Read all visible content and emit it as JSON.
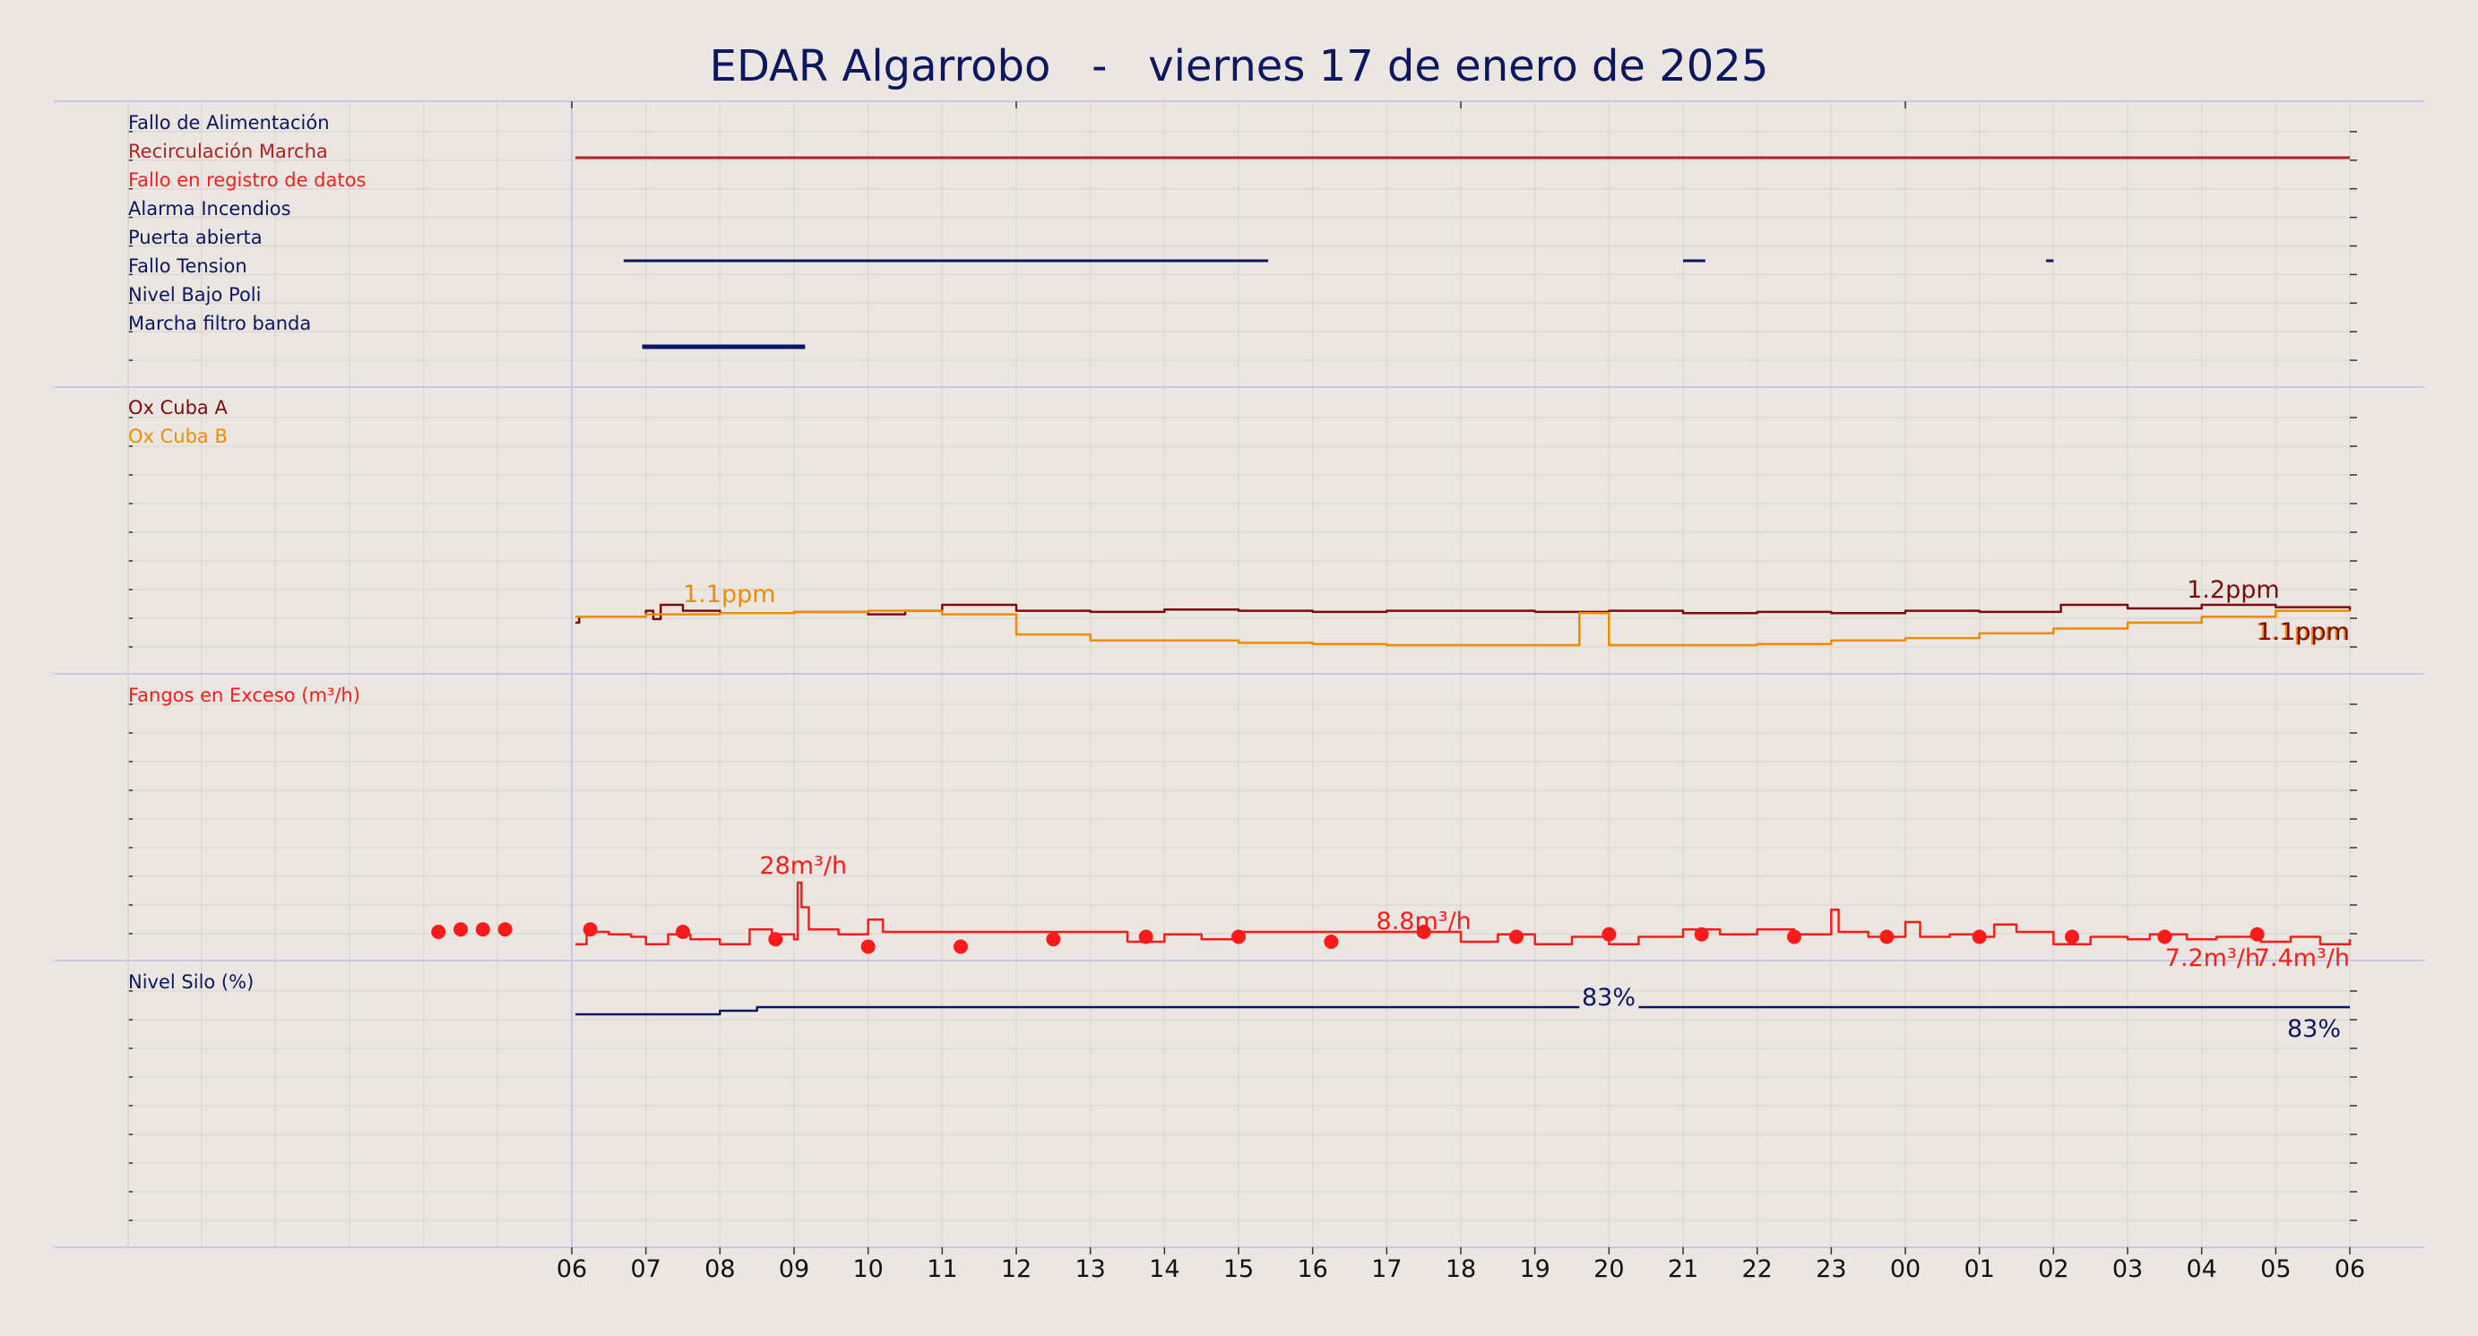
{
  "title": "EDAR Algarrobo   -   viernes 17 de enero de 2025",
  "chart_data": {
    "type": "line",
    "x_tick_labels": [
      "06",
      "07",
      "08",
      "09",
      "10",
      "11",
      "12",
      "13",
      "14",
      "15",
      "16",
      "17",
      "18",
      "19",
      "20",
      "21",
      "22",
      "23",
      "00",
      "01",
      "02",
      "03",
      "04",
      "05",
      "06"
    ],
    "panels": [
      {
        "name": "alarms",
        "series": [
          {
            "name": "Fallo de Alimentación",
            "color": "#0d1660",
            "segments": []
          },
          {
            "name": "Recirculación Marcha",
            "color": "#b22222",
            "segments": [
              [
                6.05,
                30.0
              ]
            ]
          },
          {
            "name": "Fallo en registro de datos",
            "color": "#ff1a1a",
            "segments": []
          },
          {
            "name": "Alarma Incendios",
            "color": "#0d1660",
            "segments": []
          },
          {
            "name": "Puerta abierta",
            "color": "#0d1660",
            "segments": [
              [
                6.7,
                15.4
              ],
              [
                21.0,
                21.3
              ],
              [
                25.9,
                26.0
              ]
            ]
          },
          {
            "name": "Fallo Tension",
            "color": "#0d1660",
            "segments": []
          },
          {
            "name": "Nivel Bajo Poli",
            "color": "#0d1660",
            "segments": []
          },
          {
            "name": "Marcha filtro banda",
            "color": "#0d1660",
            "segments": [
              [
                6.95,
                9.15
              ]
            ]
          }
        ]
      },
      {
        "name": "oxygen",
        "unit": "ppm",
        "ylim": [
          0,
          2.2
        ],
        "series": [
          {
            "name": "Ox Cuba A",
            "color": "#7a0c0c",
            "points": [
              [
                6.05,
                1.05
              ],
              [
                6.1,
                1.1
              ],
              [
                7.0,
                1.15
              ],
              [
                7.1,
                1.08
              ],
              [
                7.2,
                1.2
              ],
              [
                7.5,
                1.15
              ],
              [
                8.0,
                1.13
              ],
              [
                9.0,
                1.14
              ],
              [
                10.0,
                1.12
              ],
              [
                10.5,
                1.15
              ],
              [
                11.0,
                1.2
              ],
              [
                12.0,
                1.15
              ],
              [
                13.0,
                1.14
              ],
              [
                14.0,
                1.16
              ],
              [
                15.0,
                1.15
              ],
              [
                16.0,
                1.14
              ],
              [
                17.0,
                1.15
              ],
              [
                18.0,
                1.15
              ],
              [
                19.0,
                1.14
              ],
              [
                20.0,
                1.15
              ],
              [
                21.0,
                1.13
              ],
              [
                22.0,
                1.14
              ],
              [
                23.0,
                1.13
              ],
              [
                24.0,
                1.15
              ],
              [
                25.0,
                1.14
              ],
              [
                26.0,
                1.14
              ],
              [
                26.1,
                1.2
              ],
              [
                27.0,
                1.17
              ],
              [
                28.0,
                1.2
              ],
              [
                29.0,
                1.18
              ],
              [
                30.0,
                1.15
              ]
            ],
            "label_value": 1.2,
            "label_x": 27.8,
            "end_label_value": 1.1
          },
          {
            "name": "Ox Cuba B",
            "color": "#f08c00",
            "points": [
              [
                6.05,
                1.1
              ],
              [
                7.0,
                1.12
              ],
              [
                8.0,
                1.13
              ],
              [
                9.0,
                1.14
              ],
              [
                10.0,
                1.15
              ],
              [
                11.0,
                1.12
              ],
              [
                12.0,
                1.12
              ],
              [
                12.0,
                0.95
              ],
              [
                13.0,
                0.95
              ],
              [
                13.0,
                0.9
              ],
              [
                14.0,
                0.9
              ],
              [
                15.0,
                0.88
              ],
              [
                16.0,
                0.87
              ],
              [
                17.0,
                0.86
              ],
              [
                18.0,
                0.86
              ],
              [
                19.0,
                0.86
              ],
              [
                19.6,
                0.86
              ],
              [
                19.6,
                1.13
              ],
              [
                20.0,
                1.13
              ],
              [
                20.0,
                0.86
              ],
              [
                21.0,
                0.86
              ],
              [
                22.0,
                0.87
              ],
              [
                23.0,
                0.9
              ],
              [
                24.0,
                0.92
              ],
              [
                25.0,
                0.96
              ],
              [
                26.0,
                1.0
              ],
              [
                27.0,
                1.05
              ],
              [
                28.0,
                1.1
              ],
              [
                29.0,
                1.15
              ],
              [
                30.0,
                1.15
              ]
            ],
            "label_value": 1.1,
            "label_x": 7.5,
            "end_label_value": 1.1
          }
        ]
      },
      {
        "name": "sludge",
        "ylim": [
          0,
          100
        ],
        "series": [
          {
            "name": "Fangos en Exceso (m³/h)",
            "unit": "m³/h",
            "color": "#ff1a1a",
            "points": [
              [
                6.05,
                3
              ],
              [
                6.2,
                8
              ],
              [
                6.5,
                7
              ],
              [
                6.8,
                6
              ],
              [
                7.0,
                3
              ],
              [
                7.3,
                7
              ],
              [
                7.6,
                5
              ],
              [
                8.0,
                3
              ],
              [
                8.4,
                9
              ],
              [
                8.7,
                7
              ],
              [
                9.0,
                5
              ],
              [
                9.05,
                28
              ],
              [
                9.1,
                18
              ],
              [
                9.2,
                9
              ],
              [
                9.6,
                7
              ],
              [
                10.0,
                13
              ],
              [
                10.2,
                8
              ],
              [
                10.5,
                8
              ],
              [
                11.0,
                8
              ],
              [
                12.0,
                8
              ],
              [
                13.0,
                8
              ],
              [
                13.5,
                4
              ],
              [
                14.0,
                7
              ],
              [
                14.5,
                5
              ],
              [
                15.0,
                8
              ],
              [
                16.0,
                8
              ],
              [
                17.0,
                8
              ],
              [
                18.0,
                4
              ],
              [
                18.5,
                7
              ],
              [
                19.0,
                3
              ],
              [
                19.5,
                6
              ],
              [
                20.0,
                3
              ],
              [
                20.4,
                6
              ],
              [
                21.0,
                9
              ],
              [
                21.5,
                7
              ],
              [
                22.0,
                9
              ],
              [
                22.5,
                7
              ],
              [
                23.0,
                17
              ],
              [
                23.1,
                8
              ],
              [
                23.5,
                6
              ],
              [
                24.0,
                12
              ],
              [
                24.2,
                6
              ],
              [
                24.6,
                7
              ],
              [
                25.0,
                6
              ],
              [
                25.2,
                11
              ],
              [
                25.5,
                8
              ],
              [
                26.0,
                3
              ],
              [
                26.5,
                6
              ],
              [
                27.0,
                5
              ],
              [
                27.3,
                7
              ],
              [
                27.8,
                5
              ],
              [
                28.2,
                6
              ],
              [
                28.8,
                4
              ],
              [
                29.2,
                6
              ],
              [
                29.6,
                3
              ],
              [
                30.0,
                5
              ]
            ],
            "dots": [
              [
                4.2,
                8
              ],
              [
                4.5,
                9
              ],
              [
                4.8,
                9
              ],
              [
                5.1,
                9
              ],
              [
                6.25,
                9
              ],
              [
                7.5,
                8
              ],
              [
                8.75,
                5
              ],
              [
                10.0,
                2
              ],
              [
                11.25,
                2
              ],
              [
                12.5,
                5
              ],
              [
                13.75,
                6
              ],
              [
                15.0,
                6
              ],
              [
                16.25,
                4
              ],
              [
                17.5,
                8
              ],
              [
                18.75,
                6
              ],
              [
                20.0,
                7
              ],
              [
                21.25,
                7
              ],
              [
                22.5,
                6
              ],
              [
                23.75,
                6
              ],
              [
                25.0,
                6
              ],
              [
                26.25,
                6
              ],
              [
                27.5,
                6
              ],
              [
                28.75,
                7
              ]
            ],
            "annotations": [
              {
                "text": "28m³/h",
                "x": 9.1,
                "value": 28
              },
              {
                "text": "8.8m³/h",
                "x": 17.5,
                "value": 8.8
              },
              {
                "text": "7.2m³/h",
                "x": 28.2,
                "value": 7.2
              },
              {
                "text": "7.4m³/h",
                "x": 29.5,
                "value": 7.4
              }
            ]
          }
        ]
      },
      {
        "name": "silo",
        "ylim": [
          0,
          100
        ],
        "series": [
          {
            "name": "Nivel Silo (%)",
            "unit": "%",
            "color": "#0d1660",
            "points": [
              [
                6.05,
                81
              ],
              [
                8.0,
                81
              ],
              [
                8.0,
                82
              ],
              [
                8.5,
                82
              ],
              [
                8.5,
                83
              ],
              [
                19.0,
                83
              ],
              [
                19.6,
                83
              ]
            ],
            "points2": [
              [
                20.4,
                83
              ],
              [
                30.0,
                83
              ]
            ],
            "annotations": [
              {
                "text": "83%",
                "x": 20.2,
                "value": 83
              },
              {
                "text": "83%",
                "x": 29.3,
                "value": 83
              }
            ]
          }
        ]
      }
    ]
  }
}
